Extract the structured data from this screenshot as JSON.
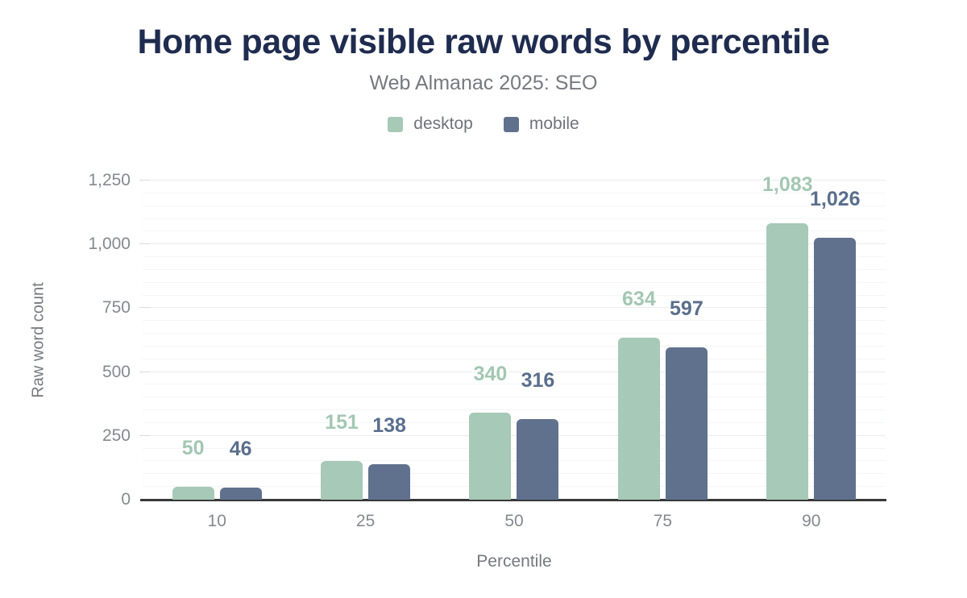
{
  "chart_data": {
    "type": "bar",
    "title": "Home page visible raw words by percentile",
    "subtitle": "Web Almanac 2025: SEO",
    "categories": [
      "10",
      "25",
      "50",
      "75",
      "90"
    ],
    "series": [
      {
        "name": "desktop",
        "color": "#a7c9b7",
        "label_color": "#a3c7b2",
        "values": [
          50,
          151,
          340,
          634,
          1083
        ],
        "value_labels": [
          "50",
          "151",
          "340",
          "634",
          "1,083"
        ]
      },
      {
        "name": "mobile",
        "color": "#60718e",
        "label_color": "#5a6e8c",
        "values": [
          46,
          138,
          316,
          597,
          1026
        ],
        "value_labels": [
          "46",
          "138",
          "316",
          "597",
          "1,026"
        ]
      }
    ],
    "xlabel": "Percentile",
    "ylabel": "Raw word count",
    "ylim": [
      0,
      1250
    ],
    "yticks": [
      {
        "value": 0,
        "label": "0"
      },
      {
        "value": 250,
        "label": "250"
      },
      {
        "value": 500,
        "label": "500"
      },
      {
        "value": 750,
        "label": "750"
      },
      {
        "value": 1000,
        "label": "1,000"
      },
      {
        "value": 1250,
        "label": "1,250"
      }
    ],
    "minor_grid_step": 50,
    "grid": "horizontal (minor + major)",
    "legend_position": "top"
  },
  "colors": {
    "background": "#ffffff",
    "title": "#1f2c4f",
    "subtitle": "#76797f",
    "axis_text": "#85898f",
    "axis_line": "#37383a",
    "grid_major": "#e9ebed",
    "grid_minor": "#f4f5f6"
  }
}
